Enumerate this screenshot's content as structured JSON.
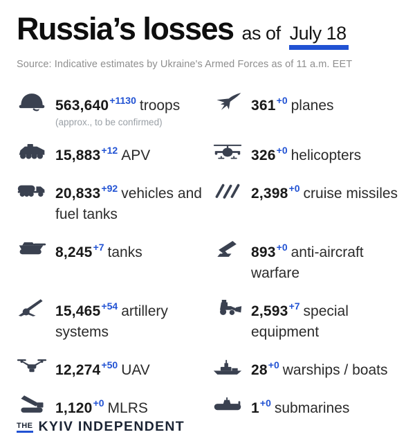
{
  "header": {
    "title": "Russia’s losses",
    "as_of": "as of",
    "date": "July 18",
    "source": "Source: Indicative estimates by Ukraine's Armed Forces as of 11 a.m. EET"
  },
  "colors": {
    "accent_blue": "#2152d3",
    "icon_slate": "#3a4150"
  },
  "stats": [
    {
      "icon": "helmet-icon",
      "value": "563,640",
      "delta": "+1130",
      "label": "troops",
      "note": "(approx., to be confirmed)",
      "column": "left"
    },
    {
      "icon": "fighter-jet-icon",
      "value": "361",
      "delta": "+0",
      "label": "planes",
      "column": "right"
    },
    {
      "icon": "apv-icon",
      "value": "15,883",
      "delta": "+12",
      "label": "APV",
      "column": "left"
    },
    {
      "icon": "helicopter-icon",
      "value": "326",
      "delta": "+0",
      "label": "helicopters",
      "column": "right"
    },
    {
      "icon": "fuel-truck-icon",
      "value": "20,833",
      "delta": "+92",
      "label": "vehicles and fuel tanks",
      "column": "left"
    },
    {
      "icon": "cruise-missiles-icon",
      "value": "2,398",
      "delta": "+0",
      "label": "cruise missiles",
      "column": "right"
    },
    {
      "icon": "tank-icon",
      "value": "8,245",
      "delta": "+7",
      "label": "tanks",
      "column": "left"
    },
    {
      "icon": "anti-aircraft-icon",
      "value": "893",
      "delta": "+0",
      "label": "anti-aircraft warfare",
      "column": "right"
    },
    {
      "icon": "artillery-icon",
      "value": "15,465",
      "delta": "+54",
      "label": "artillery systems",
      "column": "left"
    },
    {
      "icon": "special-equipment-icon",
      "value": "2,593",
      "delta": "+7",
      "label": "special equipment",
      "column": "right"
    },
    {
      "icon": "uav-icon",
      "value": "12,274",
      "delta": "+50",
      "label": "UAV",
      "column": "left"
    },
    {
      "icon": "warship-icon",
      "value": "28",
      "delta": "+0",
      "label": "warships / boats",
      "column": "right"
    },
    {
      "icon": "mlrs-icon",
      "value": "1,120",
      "delta": "+0",
      "label": "MLRS",
      "column": "left"
    },
    {
      "icon": "submarine-icon",
      "value": "1",
      "delta": "+0",
      "label": "submarines",
      "column": "right"
    }
  ],
  "footer": {
    "the": "THE",
    "brand": "KYIV INDEPENDENT"
  }
}
